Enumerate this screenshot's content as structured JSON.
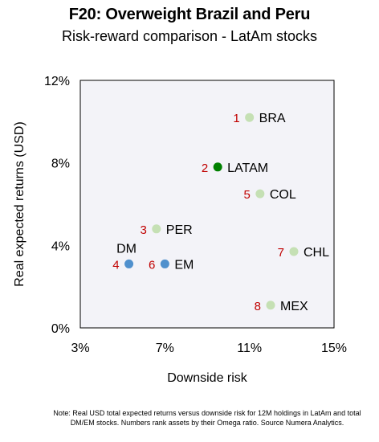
{
  "chart_data": {
    "type": "scatter",
    "title": "F20: Overweight Brazil and Peru",
    "subtitle": "Risk-reward comparison - LatAm stocks",
    "xlabel": "Downside risk",
    "ylabel": "Real expected returns (USD)",
    "xlim": [
      3,
      15
    ],
    "ylim": [
      0,
      12
    ],
    "x_ticks": [
      "3%",
      "7%",
      "11%",
      "15%"
    ],
    "y_ticks": [
      "0%",
      "4%",
      "8%",
      "12%"
    ],
    "grid": false,
    "colors": {
      "latam_country": "#c5e0b4",
      "latam_aggregate": "#008000",
      "dm_em": "#4f90cd",
      "rank": "#c00000",
      "plot_background": "#f3f3f8"
    },
    "points": [
      {
        "name": "BRA",
        "rank": "1",
        "x": 11.0,
        "y": 10.2,
        "color": "#c5e0b4"
      },
      {
        "name": "LATAM",
        "rank": "2",
        "x": 9.5,
        "y": 7.8,
        "color": "#008000"
      },
      {
        "name": "PER",
        "rank": "3",
        "x": 6.6,
        "y": 4.8,
        "color": "#c5e0b4"
      },
      {
        "name": "DM",
        "rank": "4",
        "x": 5.3,
        "y": 3.1,
        "color": "#4f90cd"
      },
      {
        "name": "COL",
        "rank": "5",
        "x": 11.5,
        "y": 6.5,
        "color": "#c5e0b4"
      },
      {
        "name": "EM",
        "rank": "6",
        "x": 7.0,
        "y": 3.1,
        "color": "#4f90cd"
      },
      {
        "name": "CHL",
        "rank": "7",
        "x": 13.1,
        "y": 3.7,
        "color": "#c5e0b4"
      },
      {
        "name": "MEX",
        "rank": "8",
        "x": 12.0,
        "y": 1.1,
        "color": "#c5e0b4"
      }
    ]
  },
  "note": "Note: Real USD total expected returns versus downside risk for 12M holdings in LatAm and total DM/EM stocks. Numbers rank assets by their Omega ratio. Source Numera Analytics."
}
